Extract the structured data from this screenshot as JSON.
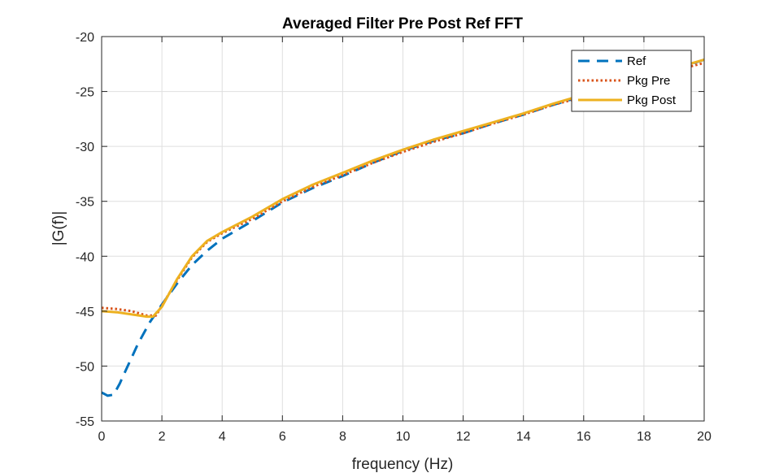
{
  "chart_data": {
    "type": "line",
    "title": "Averaged Filter Pre Post Ref FFT",
    "xlabel": "frequency (Hz)",
    "ylabel": "|G(f)|",
    "xlim": [
      0,
      20
    ],
    "ylim": [
      -55,
      -20
    ],
    "xticks": [
      0,
      2,
      4,
      6,
      8,
      10,
      12,
      14,
      16,
      18,
      20
    ],
    "yticks": [
      -55,
      -50,
      -45,
      -40,
      -35,
      -30,
      -25,
      -20
    ],
    "grid": true,
    "legend_position": "top-right",
    "series": [
      {
        "name": "Ref",
        "style": "dashed",
        "color": "#0072BD",
        "x": [
          0,
          0.2,
          0.4,
          0.6,
          0.8,
          1.0,
          1.2,
          1.4,
          1.6,
          1.8,
          2.0,
          2.5,
          3.0,
          3.5,
          4.0,
          5.0,
          6.0,
          7.0,
          8.0,
          9.0,
          10.0,
          11.0,
          12.0,
          13.0,
          14.0,
          15.0,
          16.0,
          17.0,
          18.0,
          19.0,
          20.0
        ],
        "y": [
          -52.4,
          -52.7,
          -52.6,
          -51.6,
          -50.4,
          -49.2,
          -48.0,
          -47.0,
          -46.0,
          -45.2,
          -44.4,
          -42.5,
          -40.8,
          -39.5,
          -38.4,
          -36.8,
          -35.1,
          -33.8,
          -32.7,
          -31.5,
          -30.4,
          -29.5,
          -28.8,
          -27.9,
          -27.1,
          -26.2,
          -25.4,
          -24.6,
          -23.9,
          -23.0,
          -22.1
        ]
      },
      {
        "name": "Pkg Pre",
        "style": "dotted",
        "color": "#D95319",
        "x": [
          0,
          0.5,
          1.0,
          1.5,
          1.8,
          2.0,
          2.5,
          3.0,
          3.5,
          4.0,
          5.0,
          6.0,
          7.0,
          8.0,
          9.0,
          10.0,
          11.0,
          12.0,
          13.0,
          14.0,
          15.0,
          16.0,
          17.0,
          18.0,
          19.0,
          20.0
        ],
        "y": [
          -44.7,
          -44.8,
          -45.0,
          -45.4,
          -45.4,
          -44.5,
          -42.2,
          -40.1,
          -38.7,
          -37.9,
          -36.6,
          -35.0,
          -33.7,
          -32.6,
          -31.5,
          -30.5,
          -29.6,
          -28.8,
          -27.9,
          -27.1,
          -26.2,
          -25.5,
          -24.7,
          -23.9,
          -23.1,
          -22.4
        ]
      },
      {
        "name": "Pkg Post",
        "style": "solid",
        "color": "#EDB120",
        "x": [
          0,
          0.5,
          1.0,
          1.5,
          1.7,
          2.0,
          2.5,
          3.0,
          3.5,
          4.0,
          5.0,
          6.0,
          7.0,
          8.0,
          9.0,
          10.0,
          11.0,
          12.0,
          13.0,
          14.0,
          15.0,
          16.0,
          17.0,
          18.0,
          19.0,
          20.0
        ],
        "y": [
          -45.0,
          -45.1,
          -45.3,
          -45.5,
          -45.5,
          -44.6,
          -42.1,
          -40.0,
          -38.6,
          -37.8,
          -36.4,
          -34.8,
          -33.5,
          -32.4,
          -31.3,
          -30.3,
          -29.4,
          -28.6,
          -27.8,
          -27.0,
          -26.1,
          -25.3,
          -24.5,
          -23.7,
          -22.9,
          -22.1
        ]
      }
    ]
  }
}
